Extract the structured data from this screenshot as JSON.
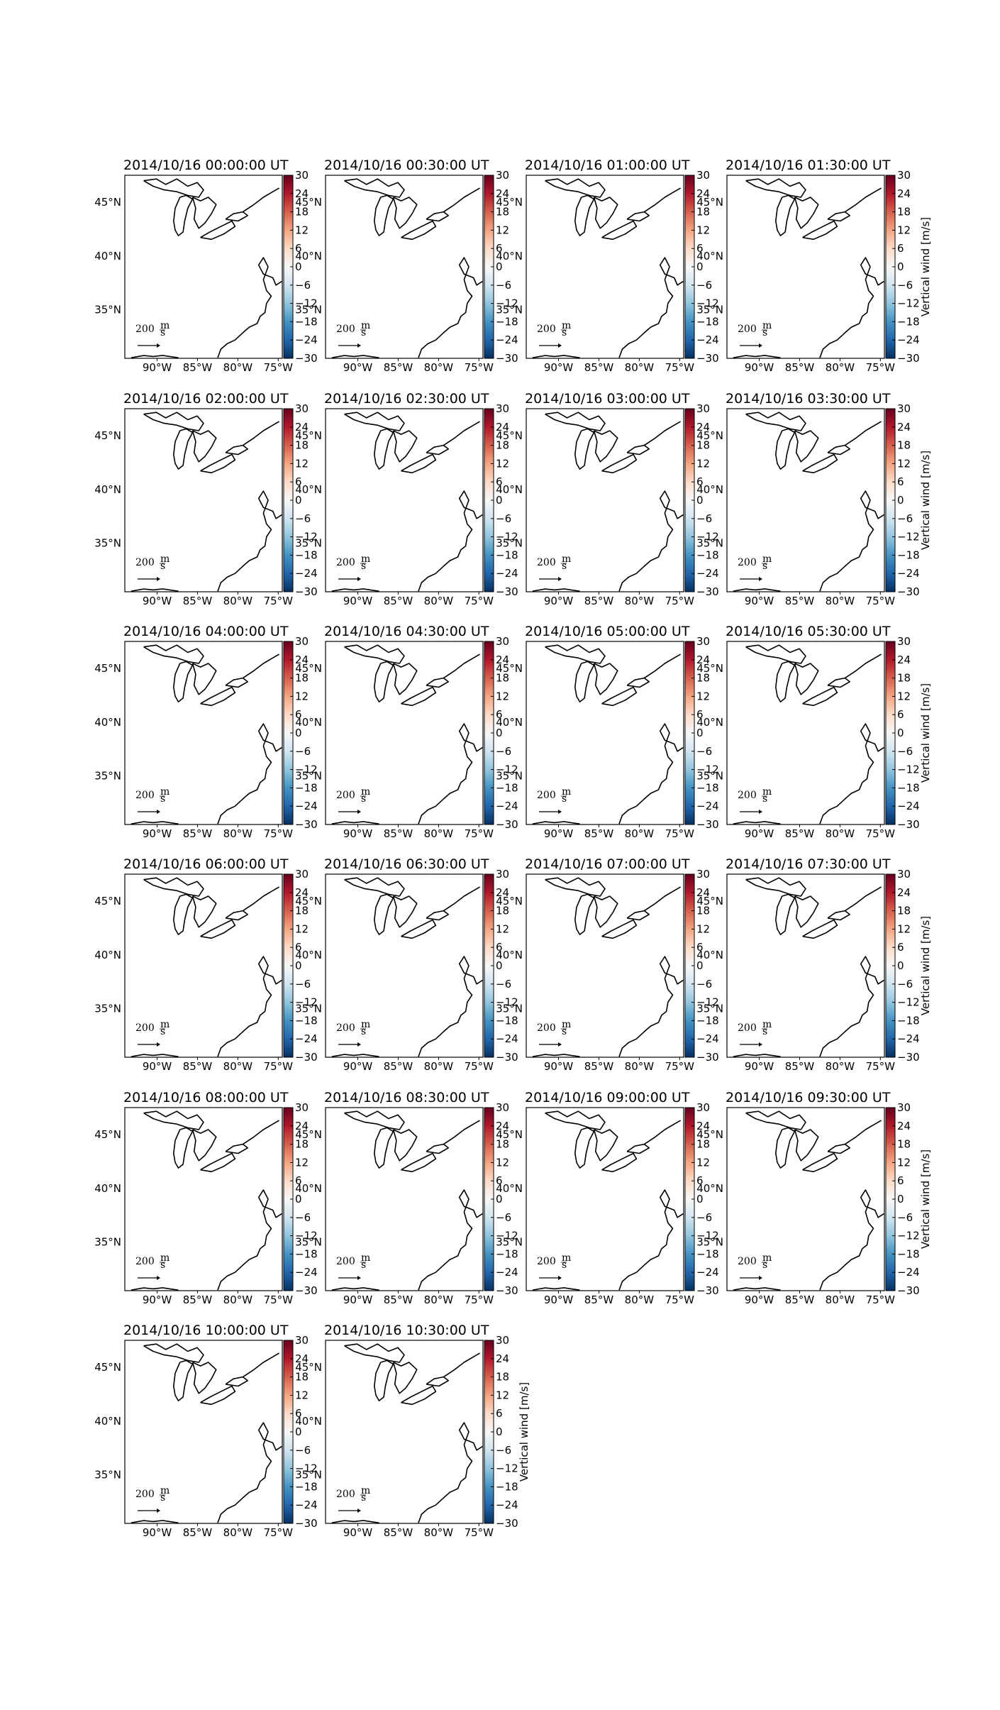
{
  "figure": {
    "background": "#ffffff",
    "grid": {
      "columns": 4,
      "rows": 6
    }
  },
  "chart_data": {
    "type": "map",
    "variable_label": "Vertical wind [m/s]",
    "colormap": [
      "#053061",
      "#2166ac",
      "#4393c3",
      "#92c5de",
      "#d1e5f0",
      "#f7f7f7",
      "#fddbc7",
      "#f4a582",
      "#d6604d",
      "#b2182b",
      "#67001f"
    ],
    "colorbar": {
      "min": -30,
      "max": 30,
      "ticks": [
        30,
        24,
        18,
        12,
        6,
        0,
        -6,
        -12,
        -18,
        -24,
        -30
      ]
    },
    "lon_range": [
      -94,
      -74.5
    ],
    "lat_range": [
      30.5,
      47.5
    ],
    "lon_ticks": [
      -90,
      -85,
      -80,
      -75
    ],
    "lon_tick_labels": [
      "90°W",
      "85°W",
      "80°W",
      "75°W"
    ],
    "lat_ticks": [
      45,
      40,
      35
    ],
    "lat_tick_labels": [
      "45°N",
      "40°N",
      "35°N"
    ],
    "vector_scale_label": "200",
    "vector_scale_unit_num": "m",
    "vector_scale_unit_den": "s",
    "panels": [
      {
        "title": "2014/10/16 00:00:00 UT"
      },
      {
        "title": "2014/10/16 00:30:00 UT"
      },
      {
        "title": "2014/10/16 01:00:00 UT"
      },
      {
        "title": "2014/10/16 01:30:00 UT"
      },
      {
        "title": "2014/10/16 02:00:00 UT"
      },
      {
        "title": "2014/10/16 02:30:00 UT"
      },
      {
        "title": "2014/10/16 03:00:00 UT"
      },
      {
        "title": "2014/10/16 03:30:00 UT"
      },
      {
        "title": "2014/10/16 04:00:00 UT"
      },
      {
        "title": "2014/10/16 04:30:00 UT"
      },
      {
        "title": "2014/10/16 05:00:00 UT"
      },
      {
        "title": "2014/10/16 05:30:00 UT"
      },
      {
        "title": "2014/10/16 06:00:00 UT"
      },
      {
        "title": "2014/10/16 06:30:00 UT"
      },
      {
        "title": "2014/10/16 07:00:00 UT"
      },
      {
        "title": "2014/10/16 07:30:00 UT"
      },
      {
        "title": "2014/10/16 08:00:00 UT"
      },
      {
        "title": "2014/10/16 08:30:00 UT"
      },
      {
        "title": "2014/10/16 09:00:00 UT"
      },
      {
        "title": "2014/10/16 09:30:00 UT"
      },
      {
        "title": "2014/10/16 10:00:00 UT"
      },
      {
        "title": "2014/10/16 10:30:00 UT"
      }
    ]
  }
}
